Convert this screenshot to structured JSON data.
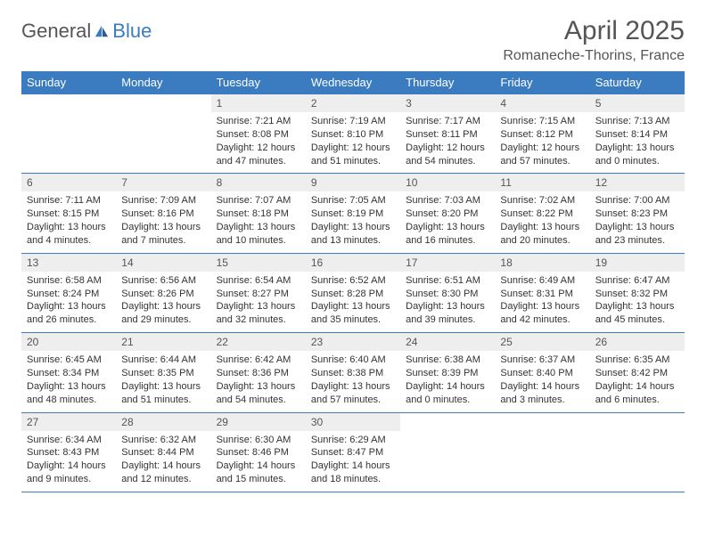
{
  "logo": {
    "general": "General",
    "blue": "Blue"
  },
  "title": "April 2025",
  "location": "Romaneche-Thorins, France",
  "colors": {
    "accent": "#3b7bbf",
    "header_bg": "#eeeeee",
    "text": "#333333",
    "muted": "#555555",
    "bg": "#ffffff"
  },
  "day_headers": [
    "Sunday",
    "Monday",
    "Tuesday",
    "Wednesday",
    "Thursday",
    "Friday",
    "Saturday"
  ],
  "weeks": [
    [
      null,
      null,
      {
        "n": "1",
        "sr": "7:21 AM",
        "ss": "8:08 PM",
        "dl": "12 hours and 47 minutes."
      },
      {
        "n": "2",
        "sr": "7:19 AM",
        "ss": "8:10 PM",
        "dl": "12 hours and 51 minutes."
      },
      {
        "n": "3",
        "sr": "7:17 AM",
        "ss": "8:11 PM",
        "dl": "12 hours and 54 minutes."
      },
      {
        "n": "4",
        "sr": "7:15 AM",
        "ss": "8:12 PM",
        "dl": "12 hours and 57 minutes."
      },
      {
        "n": "5",
        "sr": "7:13 AM",
        "ss": "8:14 PM",
        "dl": "13 hours and 0 minutes."
      }
    ],
    [
      {
        "n": "6",
        "sr": "7:11 AM",
        "ss": "8:15 PM",
        "dl": "13 hours and 4 minutes."
      },
      {
        "n": "7",
        "sr": "7:09 AM",
        "ss": "8:16 PM",
        "dl": "13 hours and 7 minutes."
      },
      {
        "n": "8",
        "sr": "7:07 AM",
        "ss": "8:18 PM",
        "dl": "13 hours and 10 minutes."
      },
      {
        "n": "9",
        "sr": "7:05 AM",
        "ss": "8:19 PM",
        "dl": "13 hours and 13 minutes."
      },
      {
        "n": "10",
        "sr": "7:03 AM",
        "ss": "8:20 PM",
        "dl": "13 hours and 16 minutes."
      },
      {
        "n": "11",
        "sr": "7:02 AM",
        "ss": "8:22 PM",
        "dl": "13 hours and 20 minutes."
      },
      {
        "n": "12",
        "sr": "7:00 AM",
        "ss": "8:23 PM",
        "dl": "13 hours and 23 minutes."
      }
    ],
    [
      {
        "n": "13",
        "sr": "6:58 AM",
        "ss": "8:24 PM",
        "dl": "13 hours and 26 minutes."
      },
      {
        "n": "14",
        "sr": "6:56 AM",
        "ss": "8:26 PM",
        "dl": "13 hours and 29 minutes."
      },
      {
        "n": "15",
        "sr": "6:54 AM",
        "ss": "8:27 PM",
        "dl": "13 hours and 32 minutes."
      },
      {
        "n": "16",
        "sr": "6:52 AM",
        "ss": "8:28 PM",
        "dl": "13 hours and 35 minutes."
      },
      {
        "n": "17",
        "sr": "6:51 AM",
        "ss": "8:30 PM",
        "dl": "13 hours and 39 minutes."
      },
      {
        "n": "18",
        "sr": "6:49 AM",
        "ss": "8:31 PM",
        "dl": "13 hours and 42 minutes."
      },
      {
        "n": "19",
        "sr": "6:47 AM",
        "ss": "8:32 PM",
        "dl": "13 hours and 45 minutes."
      }
    ],
    [
      {
        "n": "20",
        "sr": "6:45 AM",
        "ss": "8:34 PM",
        "dl": "13 hours and 48 minutes."
      },
      {
        "n": "21",
        "sr": "6:44 AM",
        "ss": "8:35 PM",
        "dl": "13 hours and 51 minutes."
      },
      {
        "n": "22",
        "sr": "6:42 AM",
        "ss": "8:36 PM",
        "dl": "13 hours and 54 minutes."
      },
      {
        "n": "23",
        "sr": "6:40 AM",
        "ss": "8:38 PM",
        "dl": "13 hours and 57 minutes."
      },
      {
        "n": "24",
        "sr": "6:38 AM",
        "ss": "8:39 PM",
        "dl": "14 hours and 0 minutes."
      },
      {
        "n": "25",
        "sr": "6:37 AM",
        "ss": "8:40 PM",
        "dl": "14 hours and 3 minutes."
      },
      {
        "n": "26",
        "sr": "6:35 AM",
        "ss": "8:42 PM",
        "dl": "14 hours and 6 minutes."
      }
    ],
    [
      {
        "n": "27",
        "sr": "6:34 AM",
        "ss": "8:43 PM",
        "dl": "14 hours and 9 minutes."
      },
      {
        "n": "28",
        "sr": "6:32 AM",
        "ss": "8:44 PM",
        "dl": "14 hours and 12 minutes."
      },
      {
        "n": "29",
        "sr": "6:30 AM",
        "ss": "8:46 PM",
        "dl": "14 hours and 15 minutes."
      },
      {
        "n": "30",
        "sr": "6:29 AM",
        "ss": "8:47 PM",
        "dl": "14 hours and 18 minutes."
      },
      null,
      null,
      null
    ]
  ],
  "labels": {
    "sunrise": "Sunrise: ",
    "sunset": "Sunset: ",
    "daylight": "Daylight: "
  }
}
